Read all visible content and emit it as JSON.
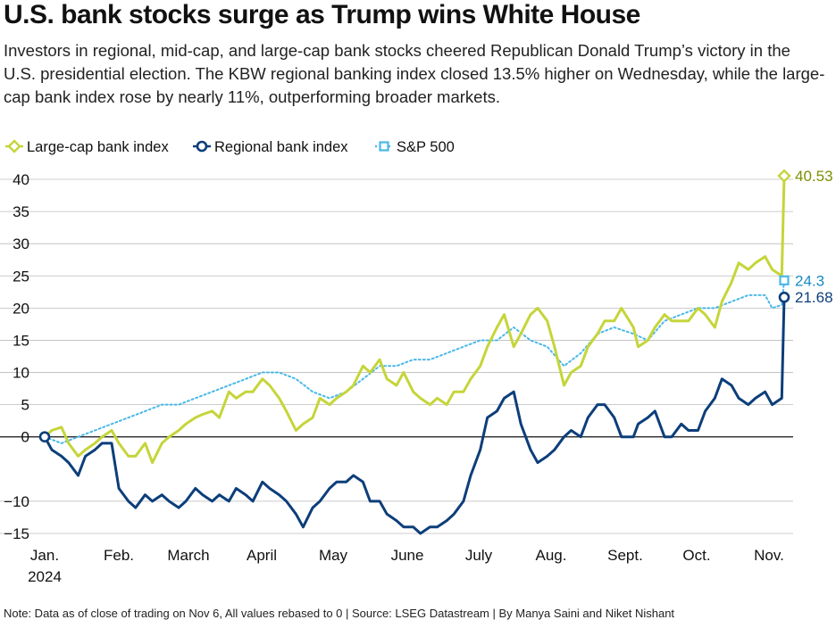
{
  "title": "U.S. bank stocks surge as Trump wins White House",
  "subtitle": "Investors in regional, mid-cap, and large-cap bank stocks cheered Republican Donald Trump’s victory in the U.S. presidential election. The KBW regional banking index closed 13.5% higher on Wednesday, while the large-cap bank index rose by nearly 11%, outperforming broader markets.",
  "note": "Note: Data as of close of trading on Nov 6, All values rebased to 0 | Source: LSEG Datastream | By Manya Saini and Niket Nishant",
  "chart_data": {
    "type": "line",
    "ylim": [
      -15,
      40
    ],
    "y_ticks": [
      "40",
      "35",
      "30",
      "25",
      "20",
      "15",
      "10",
      "5",
      "0",
      "−10",
      "−15"
    ],
    "x_ticks": [
      "Jan.\n2024",
      "Feb.",
      "March",
      "April",
      "May",
      "June",
      "July",
      "Aug.",
      "Sept.",
      "Oct.",
      "Nov."
    ],
    "series": [
      {
        "name": "Large-cap bank index",
        "color": "#c5d53a",
        "style": "solid",
        "marker": "diamond",
        "end_label": "40.53",
        "end_label_color": "#7f8f00",
        "x": [
          "2024-01-02",
          "2024-01-05",
          "2024-01-09",
          "2024-01-12",
          "2024-01-16",
          "2024-01-19",
          "2024-01-23",
          "2024-01-26",
          "2024-01-30",
          "2024-02-02",
          "2024-02-06",
          "2024-02-09",
          "2024-02-13",
          "2024-02-16",
          "2024-02-20",
          "2024-02-23",
          "2024-02-27",
          "2024-03-01",
          "2024-03-05",
          "2024-03-08",
          "2024-03-12",
          "2024-03-15",
          "2024-03-19",
          "2024-03-22",
          "2024-03-26",
          "2024-03-29",
          "2024-04-02",
          "2024-04-05",
          "2024-04-09",
          "2024-04-12",
          "2024-04-16",
          "2024-04-19",
          "2024-04-23",
          "2024-04-26",
          "2024-04-30",
          "2024-05-03",
          "2024-05-07",
          "2024-05-10",
          "2024-05-14",
          "2024-05-17",
          "2024-05-21",
          "2024-05-24",
          "2024-05-28",
          "2024-05-31",
          "2024-06-04",
          "2024-06-07",
          "2024-06-11",
          "2024-06-14",
          "2024-06-18",
          "2024-06-21",
          "2024-06-25",
          "2024-06-28",
          "2024-07-02",
          "2024-07-05",
          "2024-07-09",
          "2024-07-12",
          "2024-07-16",
          "2024-07-19",
          "2024-07-23",
          "2024-07-26",
          "2024-07-30",
          "2024-08-02",
          "2024-08-06",
          "2024-08-09",
          "2024-08-13",
          "2024-08-16",
          "2024-08-20",
          "2024-08-23",
          "2024-08-27",
          "2024-08-30",
          "2024-09-04",
          "2024-09-06",
          "2024-09-10",
          "2024-09-13",
          "2024-09-17",
          "2024-09-20",
          "2024-09-24",
          "2024-09-27",
          "2024-10-01",
          "2024-10-04",
          "2024-10-08",
          "2024-10-11",
          "2024-10-15",
          "2024-10-18",
          "2024-10-22",
          "2024-10-25",
          "2024-10-29",
          "2024-11-01",
          "2024-11-05",
          "2024-11-06"
        ],
        "y": [
          0,
          1,
          1.5,
          -1,
          -3,
          -2,
          -1,
          0,
          1,
          -1,
          -3,
          -3,
          -1,
          -4,
          -1,
          0,
          1,
          2,
          3,
          3.5,
          4,
          3,
          7,
          6,
          7,
          7,
          9,
          8,
          6,
          4,
          1,
          2,
          3,
          6,
          5,
          6,
          7,
          8,
          11,
          10,
          12,
          9,
          8,
          10,
          7,
          6,
          5,
          6,
          5,
          7,
          7,
          9,
          11,
          14,
          17,
          19,
          14,
          16,
          19,
          20,
          18,
          14,
          8,
          10,
          11,
          14,
          16,
          18,
          18,
          20,
          17,
          14,
          15,
          17,
          19,
          18,
          18,
          18,
          20,
          19,
          17,
          21,
          24,
          27,
          26,
          27,
          28,
          26,
          25,
          40.53
        ]
      },
      {
        "name": "Regional bank index",
        "color": "#0c3e7a",
        "style": "solid",
        "marker": "circle",
        "end_label": "21.68",
        "end_label_color": "#0c3e7a",
        "x": [
          "2024-01-02",
          "2024-01-05",
          "2024-01-09",
          "2024-01-12",
          "2024-01-16",
          "2024-01-19",
          "2024-01-23",
          "2024-01-26",
          "2024-01-30",
          "2024-02-02",
          "2024-02-06",
          "2024-02-09",
          "2024-02-13",
          "2024-02-16",
          "2024-02-20",
          "2024-02-23",
          "2024-02-27",
          "2024-03-01",
          "2024-03-05",
          "2024-03-08",
          "2024-03-12",
          "2024-03-15",
          "2024-03-19",
          "2024-03-22",
          "2024-03-26",
          "2024-03-29",
          "2024-04-02",
          "2024-04-05",
          "2024-04-09",
          "2024-04-12",
          "2024-04-16",
          "2024-04-19",
          "2024-04-23",
          "2024-04-26",
          "2024-04-30",
          "2024-05-03",
          "2024-05-07",
          "2024-05-10",
          "2024-05-14",
          "2024-05-17",
          "2024-05-21",
          "2024-05-24",
          "2024-05-28",
          "2024-05-31",
          "2024-06-04",
          "2024-06-07",
          "2024-06-11",
          "2024-06-14",
          "2024-06-18",
          "2024-06-21",
          "2024-06-25",
          "2024-06-28",
          "2024-07-02",
          "2024-07-05",
          "2024-07-09",
          "2024-07-12",
          "2024-07-16",
          "2024-07-19",
          "2024-07-23",
          "2024-07-26",
          "2024-07-30",
          "2024-08-02",
          "2024-08-06",
          "2024-08-09",
          "2024-08-13",
          "2024-08-16",
          "2024-08-20",
          "2024-08-23",
          "2024-08-27",
          "2024-08-30",
          "2024-09-04",
          "2024-09-06",
          "2024-09-10",
          "2024-09-13",
          "2024-09-17",
          "2024-09-20",
          "2024-09-24",
          "2024-09-27",
          "2024-10-01",
          "2024-10-04",
          "2024-10-08",
          "2024-10-11",
          "2024-10-15",
          "2024-10-18",
          "2024-10-22",
          "2024-10-25",
          "2024-10-29",
          "2024-11-01",
          "2024-11-05",
          "2024-11-06"
        ],
        "y": [
          0,
          -2,
          -3,
          -4,
          -6,
          -3,
          -2,
          -1,
          -1,
          -8,
          -10,
          -11,
          -9,
          -10,
          -9,
          -10,
          -11,
          -10,
          -8,
          -9,
          -10,
          -9,
          -10,
          -8,
          -9,
          -10,
          -7,
          -8,
          -9,
          -10,
          -12,
          -14,
          -11,
          -10,
          -8,
          -7,
          -7,
          -6,
          -7,
          -10,
          -10,
          -12,
          -13,
          -14,
          -14,
          -15,
          -14,
          -14,
          -13,
          -12,
          -10,
          -6,
          -2,
          3,
          4,
          6,
          7,
          2,
          -2,
          -4,
          -3,
          -2,
          0,
          1,
          0,
          3,
          5,
          5,
          3,
          0,
          0,
          2,
          3,
          4,
          0,
          0,
          2,
          1,
          1,
          4,
          6,
          9,
          8,
          6,
          5,
          6,
          7,
          5,
          6,
          21.68
        ]
      },
      {
        "name": "S&P 500",
        "color": "#4ab8e8",
        "style": "dotted",
        "marker": "square",
        "end_label": "24.3",
        "end_label_color": "#1a8bc3",
        "x": [
          "2024-01-02",
          "2024-01-09",
          "2024-01-16",
          "2024-01-23",
          "2024-01-30",
          "2024-02-06",
          "2024-02-13",
          "2024-02-20",
          "2024-02-27",
          "2024-03-05",
          "2024-03-12",
          "2024-03-19",
          "2024-03-26",
          "2024-04-02",
          "2024-04-09",
          "2024-04-16",
          "2024-04-23",
          "2024-04-30",
          "2024-05-07",
          "2024-05-14",
          "2024-05-21",
          "2024-05-28",
          "2024-06-04",
          "2024-06-11",
          "2024-06-18",
          "2024-06-25",
          "2024-07-02",
          "2024-07-09",
          "2024-07-16",
          "2024-07-23",
          "2024-07-30",
          "2024-08-06",
          "2024-08-13",
          "2024-08-20",
          "2024-08-27",
          "2024-09-04",
          "2024-09-10",
          "2024-09-17",
          "2024-09-24",
          "2024-10-01",
          "2024-10-08",
          "2024-10-15",
          "2024-10-22",
          "2024-10-29",
          "2024-11-01",
          "2024-11-05",
          "2024-11-06"
        ],
        "y": [
          0,
          -1,
          0,
          1,
          2,
          3,
          4,
          5,
          5,
          6,
          7,
          8,
          9,
          10,
          10,
          9,
          7,
          6,
          7,
          9,
          11,
          11,
          12,
          12,
          13,
          14,
          15,
          15,
          17,
          15,
          14,
          11,
          13,
          16,
          17,
          16,
          15,
          18,
          19,
          20,
          20,
          21,
          22,
          22,
          20,
          20.5,
          24.3
        ]
      }
    ]
  }
}
